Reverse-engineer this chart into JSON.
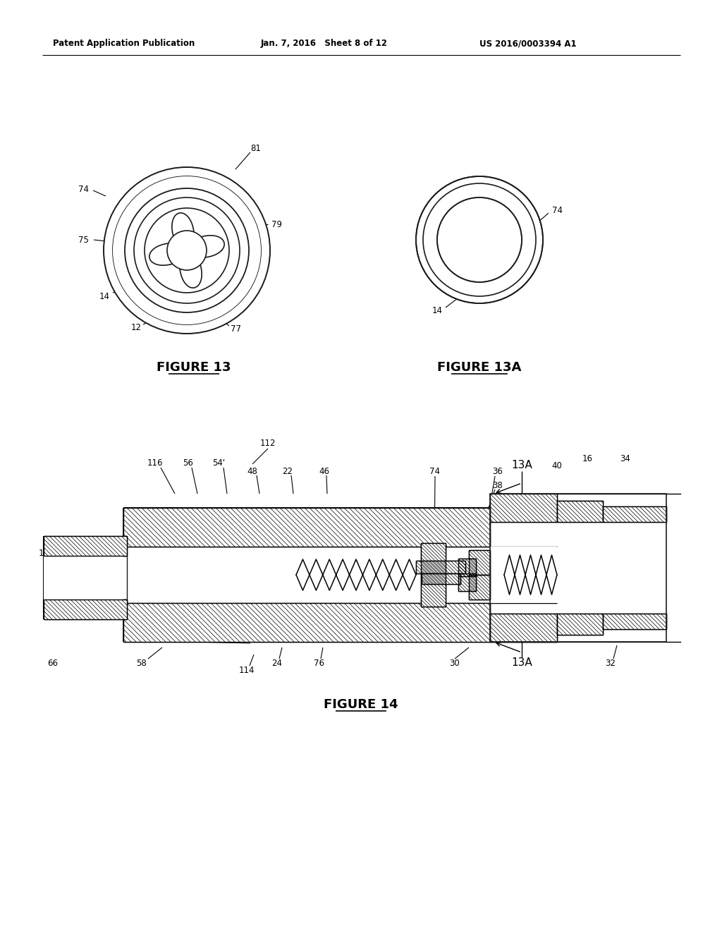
{
  "bg_color": "#ffffff",
  "header_left": "Patent Application Publication",
  "header_mid": "Jan. 7, 2016   Sheet 8 of 12",
  "header_right": "US 2016/0003394 A1",
  "fig13_caption": "Fɪgure 13",
  "fig13a_caption": "Fɪgure 13A",
  "fig14_caption": "Fɪgure 14",
  "text_color": "#000000",
  "line_color": "#1a1a1a"
}
